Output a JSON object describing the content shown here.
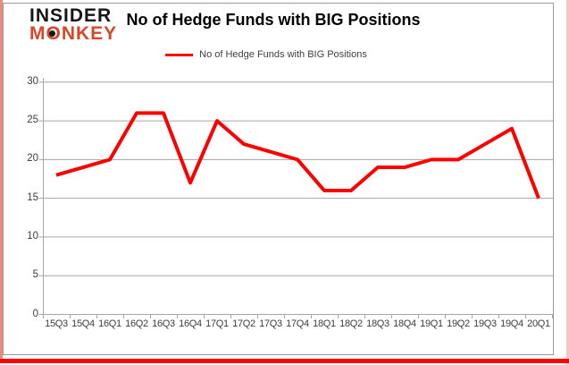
{
  "logo": {
    "line1": "INSIDER",
    "line2": "MONKEY"
  },
  "header": {
    "title": "No of Hedge Funds with BIG Positions"
  },
  "legend": {
    "label": "No of Hedge Funds with BIG Positions"
  },
  "colors": {
    "line": "#ff0000",
    "logo_red": "#d9472b",
    "grid": "#a6a6a6",
    "axis_text": "#3d3d3d",
    "frame_left": "#ef8b7d",
    "frame_bottom": "#ff0000",
    "frame_right": "#f7c6be",
    "content_border": "#9a9a9a"
  },
  "chart_data": {
    "type": "line",
    "title": "No of Hedge Funds with BIG Positions",
    "categories": [
      "15Q3",
      "15Q4",
      "16Q1",
      "16Q2",
      "16Q3",
      "16Q4",
      "17Q1",
      "17Q2",
      "17Q3",
      "17Q4",
      "18Q1",
      "18Q2",
      "18Q3",
      "18Q4",
      "19Q1",
      "19Q2",
      "19Q3",
      "19Q4",
      "20Q1"
    ],
    "series": [
      {
        "name": "No of Hedge Funds with BIG Positions",
        "color": "#ff0000",
        "values": [
          18,
          19,
          20,
          26,
          26,
          17,
          25,
          22,
          21,
          20,
          16,
          16,
          19,
          19,
          20,
          20,
          22,
          24,
          15
        ]
      }
    ],
    "xlabel": "",
    "ylabel": "",
    "ylim": [
      0,
      30
    ],
    "yticks": [
      0,
      5,
      10,
      15,
      20,
      25,
      30
    ],
    "grid": true,
    "legend_position": "top-center"
  }
}
